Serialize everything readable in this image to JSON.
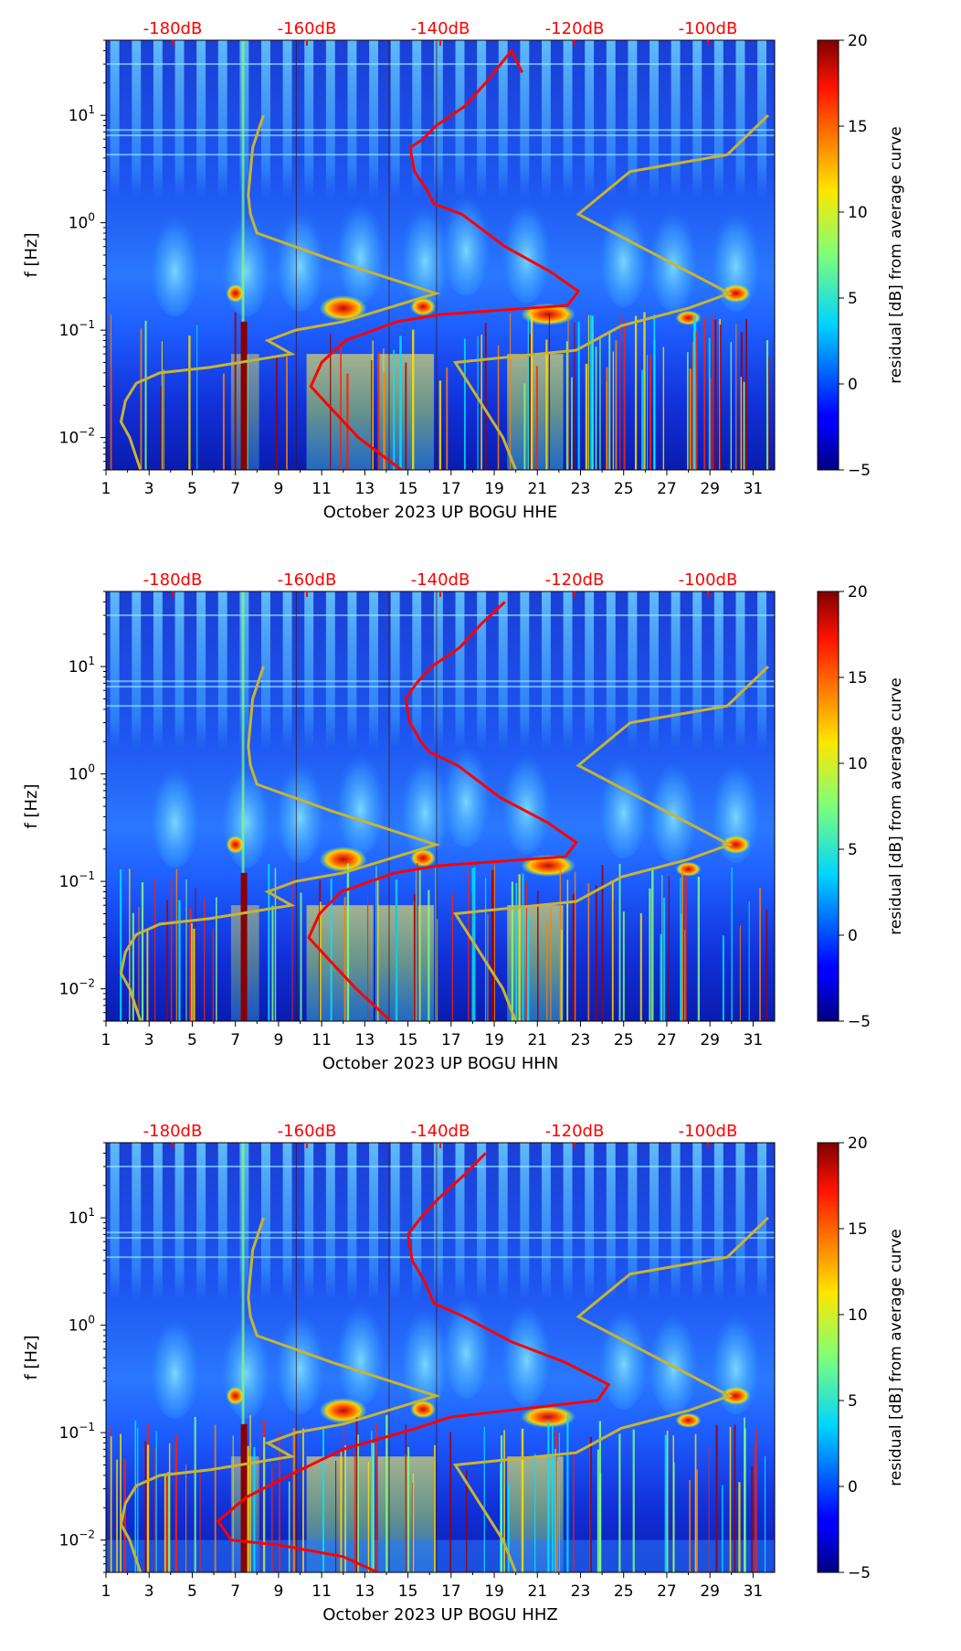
{
  "colors": {
    "reference_labels": "#ff0000",
    "average_curve": "#ff0000",
    "noise_model_curves": "#c8b432",
    "background_low": "#00007f",
    "background_mid": "#1e6fff"
  },
  "colorbar": {
    "label": "residual [dB] from average curve",
    "ticks": [
      "20",
      "15",
      "10",
      "5",
      "0",
      "−5"
    ],
    "range": [
      -5,
      20
    ],
    "colormap": "jet"
  },
  "chart_data": [
    {
      "type": "heatmap",
      "panel": "HHE",
      "xlabel": "October 2023 UP BOGU  HHE",
      "ylabel": "f [Hz]",
      "x_ticks": [
        "1",
        "3",
        "5",
        "7",
        "9",
        "11",
        "13",
        "15",
        "17",
        "19",
        "21",
        "23",
        "25",
        "27",
        "29",
        "31"
      ],
      "x_range": [
        1,
        32
      ],
      "y_ticks": [
        "10^1",
        "10^0",
        "10^-1",
        "10^-2"
      ],
      "y_range": [
        0.005,
        50
      ],
      "y_scale": "log",
      "top_labels": [
        "-180dB",
        "-160dB",
        "-140dB",
        "-120dB",
        "-100dB"
      ],
      "average_curve": {
        "x": [
          20.3,
          19.8,
          18.6,
          17.6,
          16.3,
          15.7,
          15.1,
          15.3,
          15.9,
          16.2,
          17.5,
          19.5,
          21.6,
          22.9,
          22.4,
          16.5,
          14.5,
          12.1,
          11.0,
          10.5,
          11.3,
          12.7,
          14.7
        ],
        "y": [
          25,
          40,
          20,
          12,
          8,
          6,
          5,
          3,
          2,
          1.5,
          1.2,
          0.6,
          0.35,
          0.23,
          0.17,
          0.14,
          0.12,
          0.08,
          0.05,
          0.03,
          0.02,
          0.01,
          0.005
        ]
      }
    },
    {
      "type": "heatmap",
      "panel": "HHN",
      "xlabel": "October 2023 UP BOGU  HHN",
      "ylabel": "f [Hz]",
      "x_ticks": [
        "1",
        "3",
        "5",
        "7",
        "9",
        "11",
        "13",
        "15",
        "17",
        "19",
        "21",
        "23",
        "25",
        "27",
        "29",
        "31"
      ],
      "x_range": [
        1,
        32
      ],
      "y_ticks": [
        "10^1",
        "10^0",
        "10^-1",
        "10^-2"
      ],
      "y_range": [
        0.005,
        50
      ],
      "y_scale": "log",
      "top_labels": [
        "-180dB",
        "-160dB",
        "-140dB",
        "-120dB",
        "-100dB"
      ],
      "average_curve": {
        "x": [
          19.5,
          18.4,
          17.4,
          16.1,
          15.4,
          14.9,
          15.1,
          15.6,
          16.0,
          17.3,
          19.3,
          21.5,
          22.8,
          22.3,
          16.4,
          14.4,
          11.9,
          10.9,
          10.4,
          11.2,
          12.6,
          14.2
        ],
        "y": [
          40,
          25,
          15,
          10,
          7,
          5,
          3,
          2,
          1.6,
          1.2,
          0.6,
          0.35,
          0.23,
          0.17,
          0.14,
          0.12,
          0.08,
          0.05,
          0.03,
          0.02,
          0.01,
          0.005
        ]
      }
    },
    {
      "type": "heatmap",
      "panel": "HHZ",
      "xlabel": "October 2023 UP BOGU  HHZ",
      "ylabel": "f [Hz]",
      "x_ticks": [
        "1",
        "3",
        "5",
        "7",
        "9",
        "11",
        "13",
        "15",
        "17",
        "19",
        "21",
        "23",
        "25",
        "27",
        "29",
        "31"
      ],
      "x_range": [
        1,
        32
      ],
      "y_ticks": [
        "10^1",
        "10^0",
        "10^-1",
        "10^-2"
      ],
      "y_range": [
        0.005,
        50
      ],
      "y_scale": "log",
      "top_labels": [
        "-180dB",
        "-160dB",
        "-140dB",
        "-120dB",
        "-100dB"
      ],
      "average_curve": {
        "x": [
          18.6,
          17.6,
          16.4,
          15.6,
          15.0,
          15.2,
          15.8,
          16.2,
          17.6,
          19.8,
          22.3,
          24.3,
          23.8,
          17.0,
          15.4,
          12.0,
          9.5,
          7.5,
          6.2,
          6.8,
          9.0,
          12.0,
          13.6
        ],
        "y": [
          40,
          25,
          15,
          10,
          7,
          4,
          2.5,
          1.6,
          1.2,
          0.7,
          0.45,
          0.28,
          0.2,
          0.14,
          0.11,
          0.07,
          0.04,
          0.025,
          0.015,
          0.01,
          0.009,
          0.007,
          0.005
        ]
      }
    }
  ],
  "noise_model_lines": {
    "low": {
      "x": [
        8.3,
        7.8,
        7.7,
        7.6,
        7.7,
        8.0,
        11.5,
        16.3,
        12.0,
        9.8,
        8.5,
        9.6,
        5.8,
        3.5,
        2.4,
        1.9,
        1.7,
        2.1,
        2.6
      ],
      "y": [
        10,
        5,
        3,
        1.8,
        1.2,
        0.8,
        0.45,
        0.22,
        0.12,
        0.1,
        0.08,
        0.06,
        0.045,
        0.04,
        0.032,
        0.022,
        0.014,
        0.01,
        0.005
      ]
    },
    "high": {
      "x": [
        31.7,
        29.8,
        25.3,
        22.9,
        29.9,
        28.0,
        24.9,
        22.8,
        17.2,
        19.4,
        20.0
      ],
      "y": [
        10,
        4.3,
        3.0,
        1.2,
        0.22,
        0.16,
        0.11,
        0.065,
        0.05,
        0.01,
        0.005
      ]
    }
  }
}
